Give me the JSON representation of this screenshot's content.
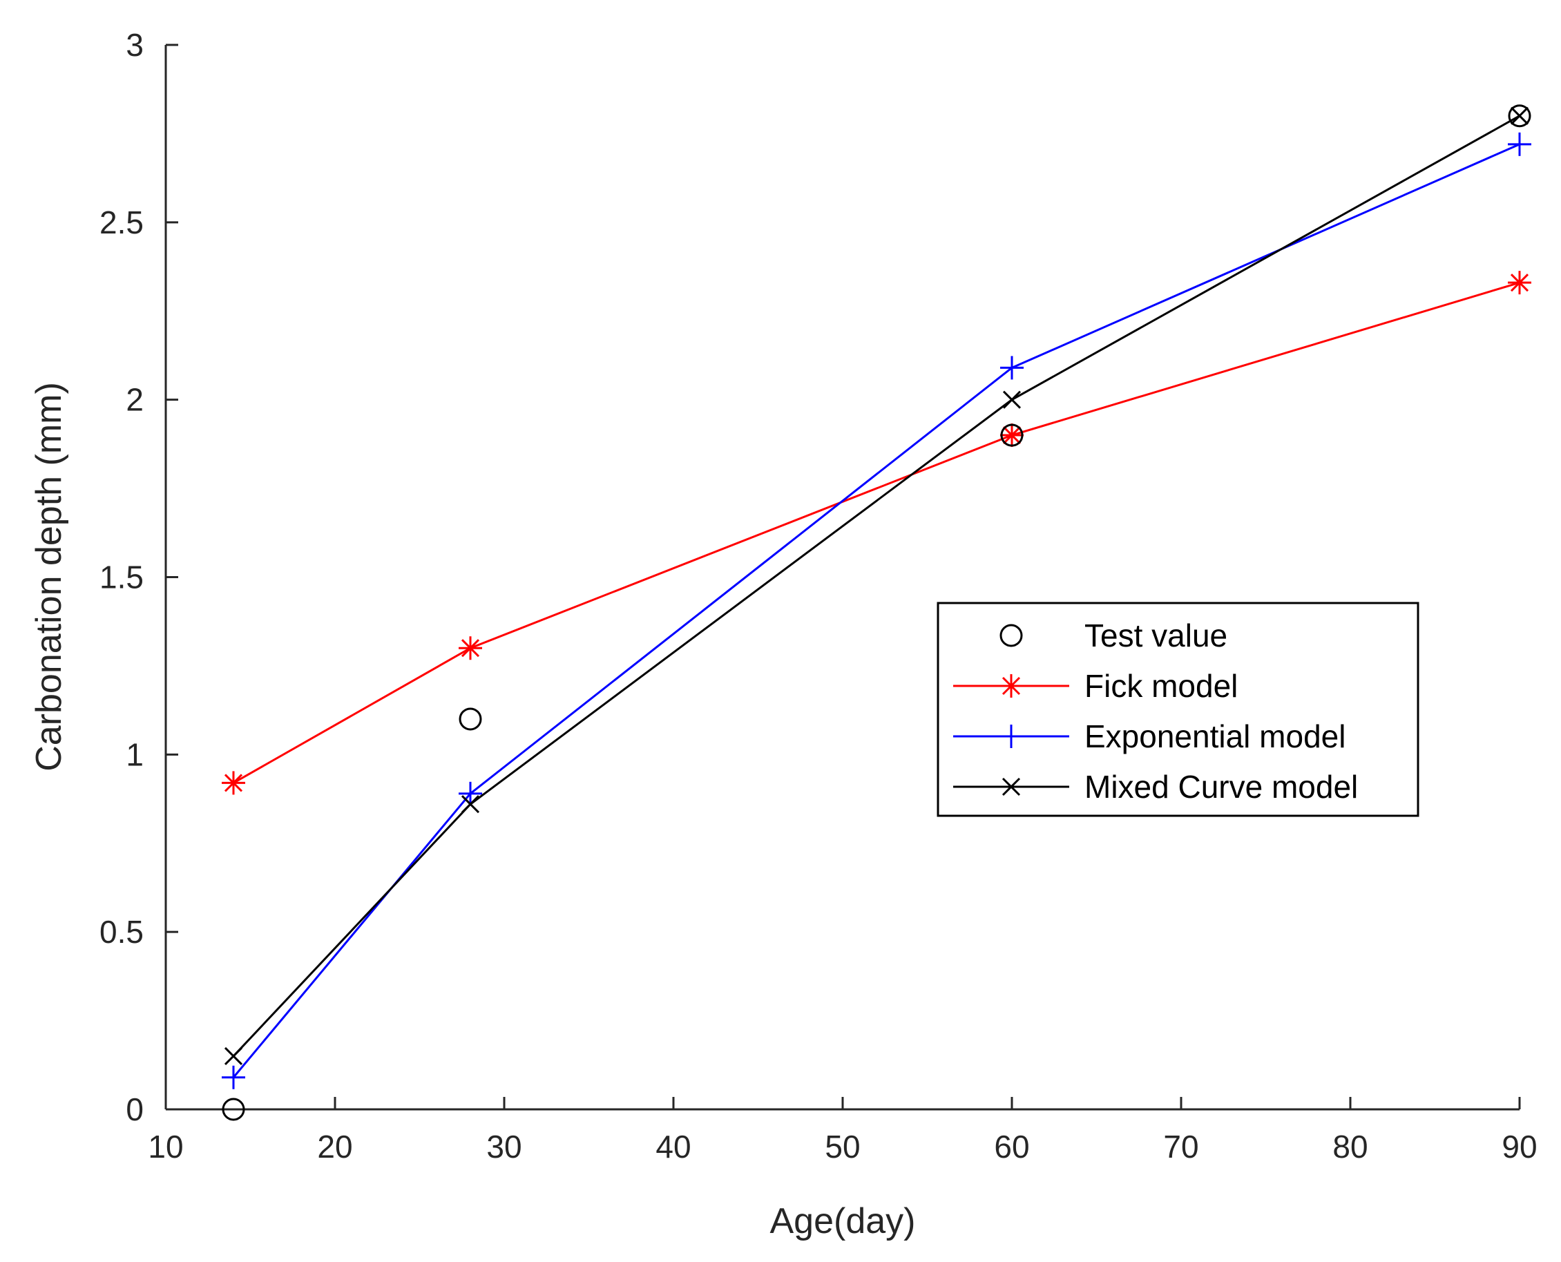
{
  "chart_data": {
    "type": "line",
    "title": "",
    "xlabel": "Age(day)",
    "ylabel": "Carbonation depth (mm)",
    "xlim": [
      10,
      90
    ],
    "ylim": [
      0,
      3
    ],
    "xticks": [
      10,
      20,
      30,
      40,
      50,
      60,
      70,
      80,
      90
    ],
    "yticks": [
      0,
      0.5,
      1,
      1.5,
      2,
      2.5,
      3
    ],
    "xtick_labels": [
      "10",
      "20",
      "30",
      "40",
      "50",
      "60",
      "70",
      "80",
      "90"
    ],
    "ytick_labels": [
      "0",
      "0.5",
      "1",
      "1.5",
      "2",
      "2.5",
      "3"
    ],
    "grid": false,
    "legend_position": "center-right",
    "x": [
      14,
      28,
      60,
      90
    ],
    "series": [
      {
        "name": "Test value",
        "values": [
          0,
          1.1,
          1.9,
          2.8
        ],
        "color": "#000000",
        "marker": "circle",
        "line": false
      },
      {
        "name": "Fick model",
        "values": [
          0.92,
          1.3,
          1.9,
          2.33
        ],
        "color": "#ff0000",
        "marker": "asterisk",
        "line": true
      },
      {
        "name": "Exponential model",
        "values": [
          0.09,
          0.89,
          2.09,
          2.72
        ],
        "color": "#0000ff",
        "marker": "plus",
        "line": true
      },
      {
        "name": "Mixed Curve model",
        "values": [
          0.15,
          0.86,
          2.0,
          2.8
        ],
        "color": "#000000",
        "marker": "cross",
        "line": true
      }
    ]
  }
}
